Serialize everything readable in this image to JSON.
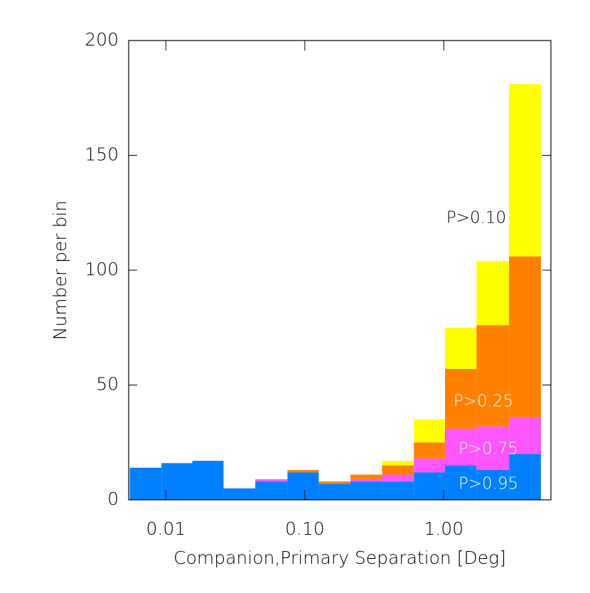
{
  "chart_data": {
    "type": "histogram",
    "xlabel": "Companion,Primary Separation [Deg]",
    "ylabel": "Number per bin",
    "bins": [
      0.0055,
      0.0093,
      0.0155,
      0.026,
      0.044,
      0.075,
      0.126,
      0.213,
      0.36,
      0.61,
      1.02,
      1.72,
      2.95,
      5.0
    ],
    "series": [
      {
        "name": "P>0.95",
        "color": "#0080ff",
        "values": [
          14,
          16,
          17,
          5,
          8,
          12,
          7,
          8,
          8,
          12,
          15,
          13,
          20
        ]
      },
      {
        "name": "P>0.75",
        "color": "#ff55ff",
        "values": [
          0,
          0,
          0,
          0,
          1,
          0,
          0,
          1,
          3,
          6,
          16,
          19,
          16
        ]
      },
      {
        "name": "P>0.25",
        "color": "#ff8000",
        "values": [
          0,
          0,
          0,
          0,
          0,
          1,
          1,
          2,
          4,
          7,
          26,
          44,
          70
        ]
      },
      {
        "name": "P>0.10",
        "color": "#ffff00",
        "values": [
          0,
          0,
          0,
          0,
          0,
          0,
          0,
          0,
          2,
          10,
          18,
          28,
          75
        ]
      }
    ],
    "xscale": "log",
    "xlim": [
      0.0054,
      5.9
    ],
    "xticks": [
      0.01,
      {
        "value": 0.1,
        "label": "0.10"
      },
      {
        "value": 1,
        "label": "1.00"
      }
    ],
    "ylim": [
      0,
      200
    ],
    "yticks": [
      0,
      50,
      100,
      150,
      200
    ]
  }
}
